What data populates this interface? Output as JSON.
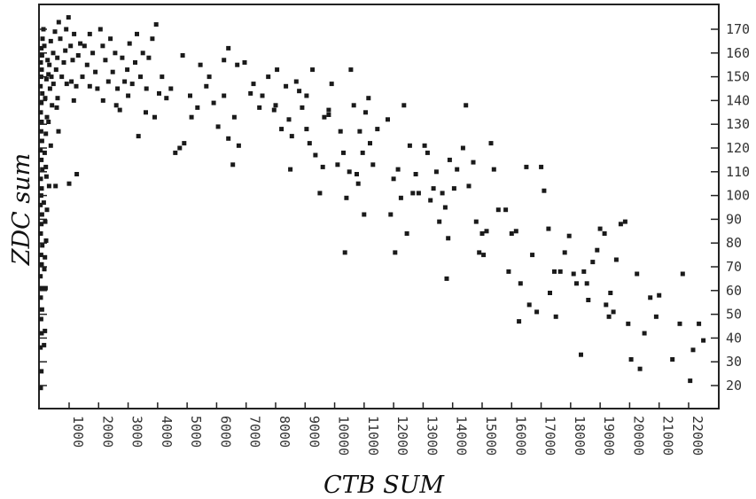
{
  "chart_data": {
    "type": "scatter",
    "title": "",
    "xlabel": "CTB SUM",
    "ylabel": "ZDC sum",
    "xlim": [
      0,
      23000
    ],
    "ylim": [
      11,
      178
    ],
    "x_ticks": [
      1000,
      2000,
      3000,
      4000,
      5000,
      6000,
      7000,
      8000,
      9000,
      10000,
      11000,
      12000,
      13000,
      14000,
      15000,
      16000,
      17000,
      18000,
      19000,
      20000,
      21000,
      22000
    ],
    "y_ticks": [
      20,
      30,
      40,
      50,
      60,
      70,
      80,
      90,
      100,
      110,
      120,
      130,
      140,
      150,
      160,
      170
    ],
    "grid": false,
    "point_color": "#1a1a1a",
    "series": [
      {
        "points": [
          [
            40,
            19
          ],
          [
            60,
            26
          ],
          [
            30,
            36
          ],
          [
            70,
            42
          ],
          [
            50,
            48
          ],
          [
            80,
            52
          ],
          [
            40,
            57
          ],
          [
            60,
            61
          ],
          [
            30,
            66
          ],
          [
            70,
            71
          ],
          [
            50,
            75
          ],
          [
            90,
            79
          ],
          [
            40,
            84
          ],
          [
            60,
            88
          ],
          [
            80,
            92
          ],
          [
            30,
            96
          ],
          [
            50,
            100
          ],
          [
            70,
            103
          ],
          [
            40,
            107
          ],
          [
            90,
            111
          ],
          [
            60,
            115
          ],
          [
            30,
            119
          ],
          [
            80,
            123
          ],
          [
            50,
            127
          ],
          [
            70,
            131
          ],
          [
            40,
            135
          ],
          [
            60,
            139
          ],
          [
            90,
            143
          ],
          [
            30,
            146
          ],
          [
            50,
            150
          ],
          [
            70,
            153
          ],
          [
            40,
            156
          ],
          [
            80,
            159
          ],
          [
            60,
            162
          ],
          [
            100,
            166
          ],
          [
            130,
            170
          ],
          [
            150,
            37
          ],
          [
            180,
            43
          ],
          [
            200,
            61
          ],
          [
            160,
            69
          ],
          [
            220,
            81
          ],
          [
            190,
            89
          ],
          [
            140,
            97
          ],
          [
            230,
            108
          ],
          [
            170,
            118
          ],
          [
            210,
            126
          ],
          [
            250,
            133
          ],
          [
            190,
            141
          ],
          [
            230,
            149
          ],
          [
            270,
            157
          ],
          [
            160,
            163
          ],
          [
            210,
            112
          ],
          [
            250,
            94
          ],
          [
            180,
            74
          ],
          [
            320,
            104
          ],
          [
            380,
            121
          ],
          [
            300,
            131
          ],
          [
            420,
            138
          ],
          [
            350,
            145
          ],
          [
            400,
            150
          ],
          [
            330,
            155
          ],
          [
            460,
            160
          ],
          [
            380,
            165
          ],
          [
            520,
            169
          ],
          [
            300,
            151
          ],
          [
            470,
            147
          ],
          [
            560,
            153
          ],
          [
            610,
            141
          ],
          [
            540,
            104
          ],
          [
            640,
            127
          ],
          [
            580,
            137
          ],
          [
            600,
            158
          ],
          [
            700,
            166
          ],
          [
            650,
            173
          ],
          [
            750,
            150
          ],
          [
            820,
            156
          ],
          [
            870,
            161
          ],
          [
            920,
            147
          ],
          [
            980,
            175
          ],
          [
            1050,
            163
          ],
          [
            1120,
            157
          ],
          [
            1170,
            168
          ],
          [
            1240,
            146
          ],
          [
            1310,
            159
          ],
          [
            1380,
            164
          ],
          [
            1450,
            150
          ],
          [
            900,
            170
          ],
          [
            1000,
            105
          ],
          [
            1080,
            148
          ],
          [
            1260,
            109
          ],
          [
            1160,
            140
          ],
          [
            1520,
            163
          ],
          [
            1610,
            155
          ],
          [
            1700,
            168
          ],
          [
            1800,
            160
          ],
          [
            1890,
            152
          ],
          [
            1960,
            145
          ],
          [
            2060,
            170
          ],
          [
            2140,
            163
          ],
          [
            2230,
            157
          ],
          [
            2330,
            148
          ],
          [
            2400,
            166
          ],
          [
            2480,
            152
          ],
          [
            2560,
            160
          ],
          [
            2640,
            145
          ],
          [
            2720,
            136
          ],
          [
            2800,
            158
          ],
          [
            2880,
            148
          ],
          [
            2970,
            153
          ],
          [
            3050,
            164
          ],
          [
            3140,
            147
          ],
          [
            3240,
            156
          ],
          [
            3300,
            168
          ],
          [
            3420,
            150
          ],
          [
            3500,
            160
          ],
          [
            3620,
            145
          ],
          [
            3700,
            158
          ],
          [
            3820,
            166
          ],
          [
            3950,
            172
          ],
          [
            4050,
            143
          ],
          [
            4150,
            150
          ],
          [
            1700,
            146
          ],
          [
            2150,
            140
          ],
          [
            2600,
            138
          ],
          [
            3000,
            142
          ],
          [
            3350,
            125
          ],
          [
            3600,
            135
          ],
          [
            3900,
            133
          ],
          [
            4300,
            141
          ],
          [
            4450,
            145
          ],
          [
            4850,
            159
          ],
          [
            4900,
            122
          ],
          [
            4600,
            118
          ],
          [
            4750,
            120
          ],
          [
            5100,
            142
          ],
          [
            5150,
            133
          ],
          [
            5350,
            137
          ],
          [
            5450,
            155
          ],
          [
            5650,
            146
          ],
          [
            5750,
            150
          ],
          [
            5900,
            139
          ],
          [
            6050,
            129
          ],
          [
            6250,
            142
          ],
          [
            6400,
            124
          ],
          [
            6600,
            133
          ],
          [
            6750,
            121
          ],
          [
            6550,
            113
          ],
          [
            6250,
            157
          ],
          [
            6400,
            162
          ],
          [
            6700,
            155
          ],
          [
            6950,
            156
          ],
          [
            7150,
            143
          ],
          [
            7250,
            147
          ],
          [
            7450,
            137
          ],
          [
            7550,
            142
          ],
          [
            7750,
            150
          ],
          [
            7950,
            136
          ],
          [
            8000,
            138
          ],
          [
            8050,
            153
          ],
          [
            8200,
            128
          ],
          [
            8350,
            146
          ],
          [
            8450,
            132
          ],
          [
            8550,
            125
          ],
          [
            8700,
            148
          ],
          [
            8800,
            144
          ],
          [
            8900,
            137
          ],
          [
            9050,
            128
          ],
          [
            9150,
            122
          ],
          [
            9350,
            117
          ],
          [
            9500,
            101
          ],
          [
            9600,
            112
          ],
          [
            9650,
            133
          ],
          [
            9800,
            134
          ],
          [
            9900,
            147
          ],
          [
            10100,
            113
          ],
          [
            10200,
            127
          ],
          [
            10300,
            118
          ],
          [
            10400,
            99
          ],
          [
            10500,
            110
          ],
          [
            10550,
            153
          ],
          [
            10650,
            138
          ],
          [
            10750,
            109
          ],
          [
            10850,
            127
          ],
          [
            10950,
            118
          ],
          [
            11000,
            92
          ],
          [
            11050,
            135
          ],
          [
            11150,
            141
          ],
          [
            11300,
            113
          ],
          [
            11450,
            128
          ],
          [
            8500,
            111
          ],
          [
            9050,
            142
          ],
          [
            9250,
            153
          ],
          [
            9800,
            136
          ],
          [
            10350,
            76
          ],
          [
            10800,
            105
          ],
          [
            11200,
            122
          ],
          [
            11800,
            132
          ],
          [
            11900,
            92
          ],
          [
            12000,
            107
          ],
          [
            12050,
            76
          ],
          [
            12150,
            111
          ],
          [
            12250,
            99
          ],
          [
            12350,
            138
          ],
          [
            12450,
            84
          ],
          [
            12550,
            121
          ],
          [
            12650,
            101
          ],
          [
            12750,
            109
          ],
          [
            12850,
            101
          ],
          [
            13050,
            121
          ],
          [
            13150,
            118
          ],
          [
            13250,
            98
          ],
          [
            13350,
            103
          ],
          [
            13450,
            110
          ],
          [
            13550,
            89
          ],
          [
            13650,
            101
          ],
          [
            13750,
            95
          ],
          [
            13850,
            82
          ],
          [
            13900,
            115
          ],
          [
            14050,
            103
          ],
          [
            14150,
            111
          ],
          [
            14350,
            120
          ],
          [
            14450,
            138
          ],
          [
            14550,
            104
          ],
          [
            14700,
            114
          ],
          [
            14800,
            89
          ],
          [
            14900,
            76
          ],
          [
            15000,
            84
          ],
          [
            15150,
            85
          ],
          [
            15300,
            122
          ],
          [
            15400,
            111
          ],
          [
            13800,
            65
          ],
          [
            15050,
            75
          ],
          [
            15550,
            94
          ],
          [
            15800,
            94
          ],
          [
            15900,
            68
          ],
          [
            16000,
            84
          ],
          [
            16150,
            85
          ],
          [
            16300,
            63
          ],
          [
            16500,
            112
          ],
          [
            16600,
            54
          ],
          [
            16700,
            75
          ],
          [
            16850,
            51
          ],
          [
            17000,
            112
          ],
          [
            17100,
            102
          ],
          [
            17300,
            59
          ],
          [
            17450,
            68
          ],
          [
            17500,
            49
          ],
          [
            17650,
            68
          ],
          [
            17800,
            76
          ],
          [
            17950,
            83
          ],
          [
            18100,
            67
          ],
          [
            18200,
            63
          ],
          [
            18350,
            33
          ],
          [
            18450,
            68
          ],
          [
            18600,
            56
          ],
          [
            18750,
            72
          ],
          [
            18900,
            77
          ],
          [
            19000,
            86
          ],
          [
            19150,
            84
          ],
          [
            19200,
            54
          ],
          [
            19350,
            59
          ],
          [
            19450,
            51
          ],
          [
            19550,
            73
          ],
          [
            19700,
            88
          ],
          [
            19850,
            89
          ],
          [
            19950,
            46
          ],
          [
            20050,
            31
          ],
          [
            20250,
            67
          ],
          [
            20350,
            27
          ],
          [
            20500,
            42
          ],
          [
            20700,
            57
          ],
          [
            20900,
            49
          ],
          [
            21000,
            58
          ],
          [
            21450,
            31
          ],
          [
            21700,
            46
          ],
          [
            21800,
            67
          ],
          [
            22050,
            22
          ],
          [
            22150,
            35
          ],
          [
            22350,
            46
          ],
          [
            22500,
            39
          ],
          [
            16250,
            47
          ],
          [
            17250,
            86
          ],
          [
            18550,
            63
          ],
          [
            19300,
            49
          ]
        ]
      }
    ]
  }
}
